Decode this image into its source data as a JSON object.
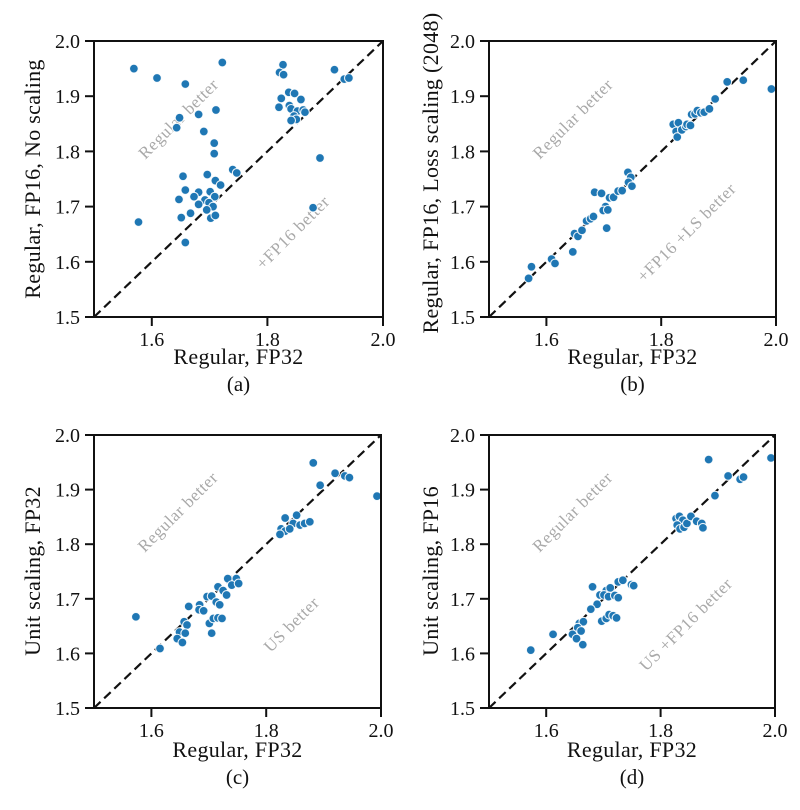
{
  "figure": {
    "colors": {
      "dot": "#1f77b4",
      "dot_edge": "#ffffff",
      "axis": "#111111",
      "annotation": "#a9a9a9"
    },
    "x_ticks": [
      1.6,
      1.8,
      2.0
    ],
    "y_ticks": [
      1.5,
      1.6,
      1.7,
      1.8,
      1.9,
      2.0
    ],
    "annotation_rotation_deg": 45
  },
  "chart_data": [
    {
      "type": "scatter",
      "panel": "a",
      "caption": "(a)",
      "xlabel": "Regular, FP32",
      "ylabel": "Regular, FP16, No scaling",
      "xlim": [
        1.5,
        2.0
      ],
      "ylim": [
        1.5,
        2.0
      ],
      "diagonal": true,
      "grid": false,
      "annotations": [
        {
          "text": "Regular better",
          "x": 1.653,
          "y": 1.852
        },
        {
          "text": "+FP16 better",
          "x": 1.851,
          "y": 1.646
        }
      ],
      "points": [
        [
          1.569,
          1.95
        ],
        [
          1.609,
          1.933
        ],
        [
          1.658,
          1.922
        ],
        [
          1.722,
          1.961
        ],
        [
          1.648,
          1.861
        ],
        [
          1.643,
          1.843
        ],
        [
          1.681,
          1.867
        ],
        [
          1.711,
          1.875
        ],
        [
          1.69,
          1.836
        ],
        [
          1.708,
          1.815
        ],
        [
          1.708,
          1.796
        ],
        [
          1.827,
          1.957
        ],
        [
          1.821,
          1.943
        ],
        [
          1.828,
          1.939
        ],
        [
          1.916,
          1.948
        ],
        [
          1.933,
          1.931
        ],
        [
          1.941,
          1.933
        ],
        [
          1.837,
          1.907
        ],
        [
          1.847,
          1.905
        ],
        [
          1.824,
          1.896
        ],
        [
          1.858,
          1.894
        ],
        [
          1.82,
          1.88
        ],
        [
          1.838,
          1.883
        ],
        [
          1.841,
          1.877
        ],
        [
          1.852,
          1.873
        ],
        [
          1.862,
          1.875
        ],
        [
          1.865,
          1.871
        ],
        [
          1.846,
          1.864
        ],
        [
          1.85,
          1.858
        ],
        [
          1.841,
          1.856
        ],
        [
          1.891,
          1.788
        ],
        [
          1.879,
          1.698
        ],
        [
          1.654,
          1.755
        ],
        [
          1.696,
          1.758
        ],
        [
          1.71,
          1.747
        ],
        [
          1.74,
          1.767
        ],
        [
          1.747,
          1.761
        ],
        [
          1.719,
          1.739
        ],
        [
          1.658,
          1.73
        ],
        [
          1.681,
          1.726
        ],
        [
          1.647,
          1.713
        ],
        [
          1.673,
          1.718
        ],
        [
          1.701,
          1.727
        ],
        [
          1.709,
          1.718
        ],
        [
          1.692,
          1.712
        ],
        [
          1.699,
          1.707
        ],
        [
          1.681,
          1.704
        ],
        [
          1.706,
          1.7
        ],
        [
          1.695,
          1.694
        ],
        [
          1.667,
          1.688
        ],
        [
          1.702,
          1.679
        ],
        [
          1.71,
          1.684
        ],
        [
          1.651,
          1.68
        ],
        [
          1.577,
          1.672
        ],
        [
          1.658,
          1.635
        ]
      ]
    },
    {
      "type": "scatter",
      "panel": "b",
      "caption": "(b)",
      "xlabel": "Regular, FP32",
      "ylabel": "Regular, FP16, Loss scaling (2048)",
      "xlim": [
        1.5,
        2.0
      ],
      "ylim": [
        1.5,
        2.0
      ],
      "diagonal": true,
      "grid": false,
      "annotations": [
        {
          "text": "Regular better",
          "x": 1.653,
          "y": 1.852
        },
        {
          "text": "+FP16 +LS better",
          "x": 1.851,
          "y": 1.646
        }
      ],
      "points": [
        [
          1.574,
          1.591
        ],
        [
          1.569,
          1.57
        ],
        [
          1.609,
          1.605
        ],
        [
          1.615,
          1.597
        ],
        [
          1.646,
          1.618
        ],
        [
          1.649,
          1.651
        ],
        [
          1.655,
          1.646
        ],
        [
          1.662,
          1.657
        ],
        [
          1.67,
          1.674
        ],
        [
          1.677,
          1.678
        ],
        [
          1.682,
          1.682
        ],
        [
          1.684,
          1.726
        ],
        [
          1.696,
          1.724
        ],
        [
          1.703,
          1.7
        ],
        [
          1.699,
          1.693
        ],
        [
          1.707,
          1.694
        ],
        [
          1.705,
          1.661
        ],
        [
          1.71,
          1.716
        ],
        [
          1.717,
          1.717
        ],
        [
          1.725,
          1.728
        ],
        [
          1.732,
          1.729
        ],
        [
          1.742,
          1.762
        ],
        [
          1.747,
          1.753
        ],
        [
          1.743,
          1.744
        ],
        [
          1.749,
          1.737
        ],
        [
          1.821,
          1.849
        ],
        [
          1.83,
          1.852
        ],
        [
          1.826,
          1.836
        ],
        [
          1.828,
          1.826
        ],
        [
          1.836,
          1.839
        ],
        [
          1.843,
          1.845
        ],
        [
          1.845,
          1.849
        ],
        [
          1.851,
          1.847
        ],
        [
          1.853,
          1.867
        ],
        [
          1.859,
          1.868
        ],
        [
          1.863,
          1.874
        ],
        [
          1.869,
          1.87
        ],
        [
          1.875,
          1.871
        ],
        [
          1.884,
          1.877
        ],
        [
          1.894,
          1.895
        ],
        [
          1.915,
          1.926
        ],
        [
          1.943,
          1.929
        ],
        [
          1.992,
          1.913
        ]
      ]
    },
    {
      "type": "scatter",
      "panel": "c",
      "caption": "(c)",
      "xlabel": "Regular, FP32",
      "ylabel": "Unit scaling, FP32",
      "xlim": [
        1.5,
        2.0
      ],
      "ylim": [
        1.5,
        2.0
      ],
      "diagonal": true,
      "grid": false,
      "annotations": [
        {
          "text": "Regular better",
          "x": 1.653,
          "y": 1.852
        },
        {
          "text": "US better",
          "x": 1.851,
          "y": 1.646
        }
      ],
      "points": [
        [
          1.882,
          1.949
        ],
        [
          1.92,
          1.93
        ],
        [
          1.937,
          1.925
        ],
        [
          1.945,
          1.922
        ],
        [
          1.894,
          1.908
        ],
        [
          1.993,
          1.888
        ],
        [
          1.833,
          1.848
        ],
        [
          1.853,
          1.853
        ],
        [
          1.847,
          1.838
        ],
        [
          1.859,
          1.835
        ],
        [
          1.867,
          1.838
        ],
        [
          1.876,
          1.841
        ],
        [
          1.826,
          1.828
        ],
        [
          1.833,
          1.824
        ],
        [
          1.841,
          1.828
        ],
        [
          1.824,
          1.818
        ],
        [
          1.733,
          1.737
        ],
        [
          1.748,
          1.737
        ],
        [
          1.74,
          1.725
        ],
        [
          1.752,
          1.728
        ],
        [
          1.716,
          1.722
        ],
        [
          1.725,
          1.715
        ],
        [
          1.697,
          1.704
        ],
        [
          1.705,
          1.705
        ],
        [
          1.713,
          1.694
        ],
        [
          1.719,
          1.689
        ],
        [
          1.731,
          1.707
        ],
        [
          1.665,
          1.686
        ],
        [
          1.684,
          1.689
        ],
        [
          1.683,
          1.68
        ],
        [
          1.691,
          1.678
        ],
        [
          1.701,
          1.655
        ],
        [
          1.708,
          1.664
        ],
        [
          1.716,
          1.665
        ],
        [
          1.723,
          1.664
        ],
        [
          1.657,
          1.658
        ],
        [
          1.662,
          1.652
        ],
        [
          1.649,
          1.639
        ],
        [
          1.659,
          1.637
        ],
        [
          1.705,
          1.637
        ],
        [
          1.645,
          1.627
        ],
        [
          1.654,
          1.62
        ],
        [
          1.615,
          1.609
        ],
        [
          1.573,
          1.667
        ]
      ]
    },
    {
      "type": "scatter",
      "panel": "d",
      "caption": "(d)",
      "xlabel": "Regular, FP32",
      "ylabel": "Unit scaling, FP16",
      "xlim": [
        1.5,
        2.0
      ],
      "ylim": [
        1.5,
        2.0
      ],
      "diagonal": true,
      "grid": false,
      "annotations": [
        {
          "text": "Regular better",
          "x": 1.653,
          "y": 1.852
        },
        {
          "text": "US +FP16 better",
          "x": 1.851,
          "y": 1.646
        }
      ],
      "points": [
        [
          1.884,
          1.955
        ],
        [
          1.993,
          1.958
        ],
        [
          1.918,
          1.925
        ],
        [
          1.939,
          1.919
        ],
        [
          1.945,
          1.923
        ],
        [
          1.895,
          1.889
        ],
        [
          1.827,
          1.847
        ],
        [
          1.833,
          1.851
        ],
        [
          1.839,
          1.844
        ],
        [
          1.829,
          1.835
        ],
        [
          1.834,
          1.828
        ],
        [
          1.841,
          1.831
        ],
        [
          1.846,
          1.838
        ],
        [
          1.853,
          1.851
        ],
        [
          1.863,
          1.842
        ],
        [
          1.872,
          1.838
        ],
        [
          1.874,
          1.83
        ],
        [
          1.681,
          1.722
        ],
        [
          1.705,
          1.715
        ],
        [
          1.712,
          1.72
        ],
        [
          1.726,
          1.731
        ],
        [
          1.734,
          1.734
        ],
        [
          1.749,
          1.726
        ],
        [
          1.753,
          1.724
        ],
        [
          1.694,
          1.707
        ],
        [
          1.701,
          1.707
        ],
        [
          1.709,
          1.704
        ],
        [
          1.72,
          1.706
        ],
        [
          1.726,
          1.702
        ],
        [
          1.689,
          1.69
        ],
        [
          1.678,
          1.681
        ],
        [
          1.697,
          1.659
        ],
        [
          1.705,
          1.664
        ],
        [
          1.71,
          1.671
        ],
        [
          1.717,
          1.669
        ],
        [
          1.723,
          1.665
        ],
        [
          1.658,
          1.655
        ],
        [
          1.665,
          1.658
        ],
        [
          1.655,
          1.647
        ],
        [
          1.661,
          1.641
        ],
        [
          1.646,
          1.635
        ],
        [
          1.653,
          1.627
        ],
        [
          1.664,
          1.616
        ],
        [
          1.612,
          1.635
        ],
        [
          1.573,
          1.606
        ]
      ]
    }
  ]
}
